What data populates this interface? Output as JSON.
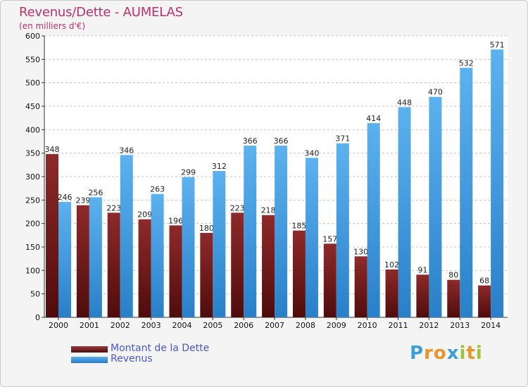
{
  "header": {
    "title": "Revenus/Dette - AUMELAS",
    "subtitle": "(en milliers d'€)"
  },
  "chart_data": {
    "type": "bar",
    "categories": [
      "2000",
      "2001",
      "2002",
      "2003",
      "2004",
      "2005",
      "2006",
      "2007",
      "2008",
      "2009",
      "2010",
      "2011",
      "2012",
      "2013",
      "2014"
    ],
    "series": [
      {
        "name": "Montant de la Dette",
        "color": "#7a1e1e",
        "values": [
          348,
          239,
          223,
          209,
          196,
          180,
          223,
          218,
          185,
          157,
          130,
          102,
          91,
          80,
          68
        ]
      },
      {
        "name": "Revenus",
        "color": "#3d95dc",
        "values": [
          246,
          256,
          346,
          263,
          299,
          312,
          366,
          366,
          340,
          371,
          414,
          448,
          470,
          532,
          571
        ]
      }
    ],
    "ylim": [
      0,
      600
    ],
    "yticks": [
      0,
      50,
      100,
      150,
      200,
      250,
      300,
      350,
      400,
      450,
      500,
      550,
      600
    ],
    "grid": true,
    "legend_position": "bottom-left"
  },
  "legend": {
    "items": [
      {
        "label": "Montant de la Dette"
      },
      {
        "label": "Revenus"
      }
    ]
  },
  "brand": {
    "letters": [
      "P",
      "r",
      "o",
      "x",
      "i",
      "t",
      "i"
    ],
    "colors": [
      "#3aa0d8",
      "#e8962a",
      "#e8962a",
      "#3aa0d8",
      "#9bc43a",
      "#e8962a",
      "#9bc43a"
    ]
  }
}
